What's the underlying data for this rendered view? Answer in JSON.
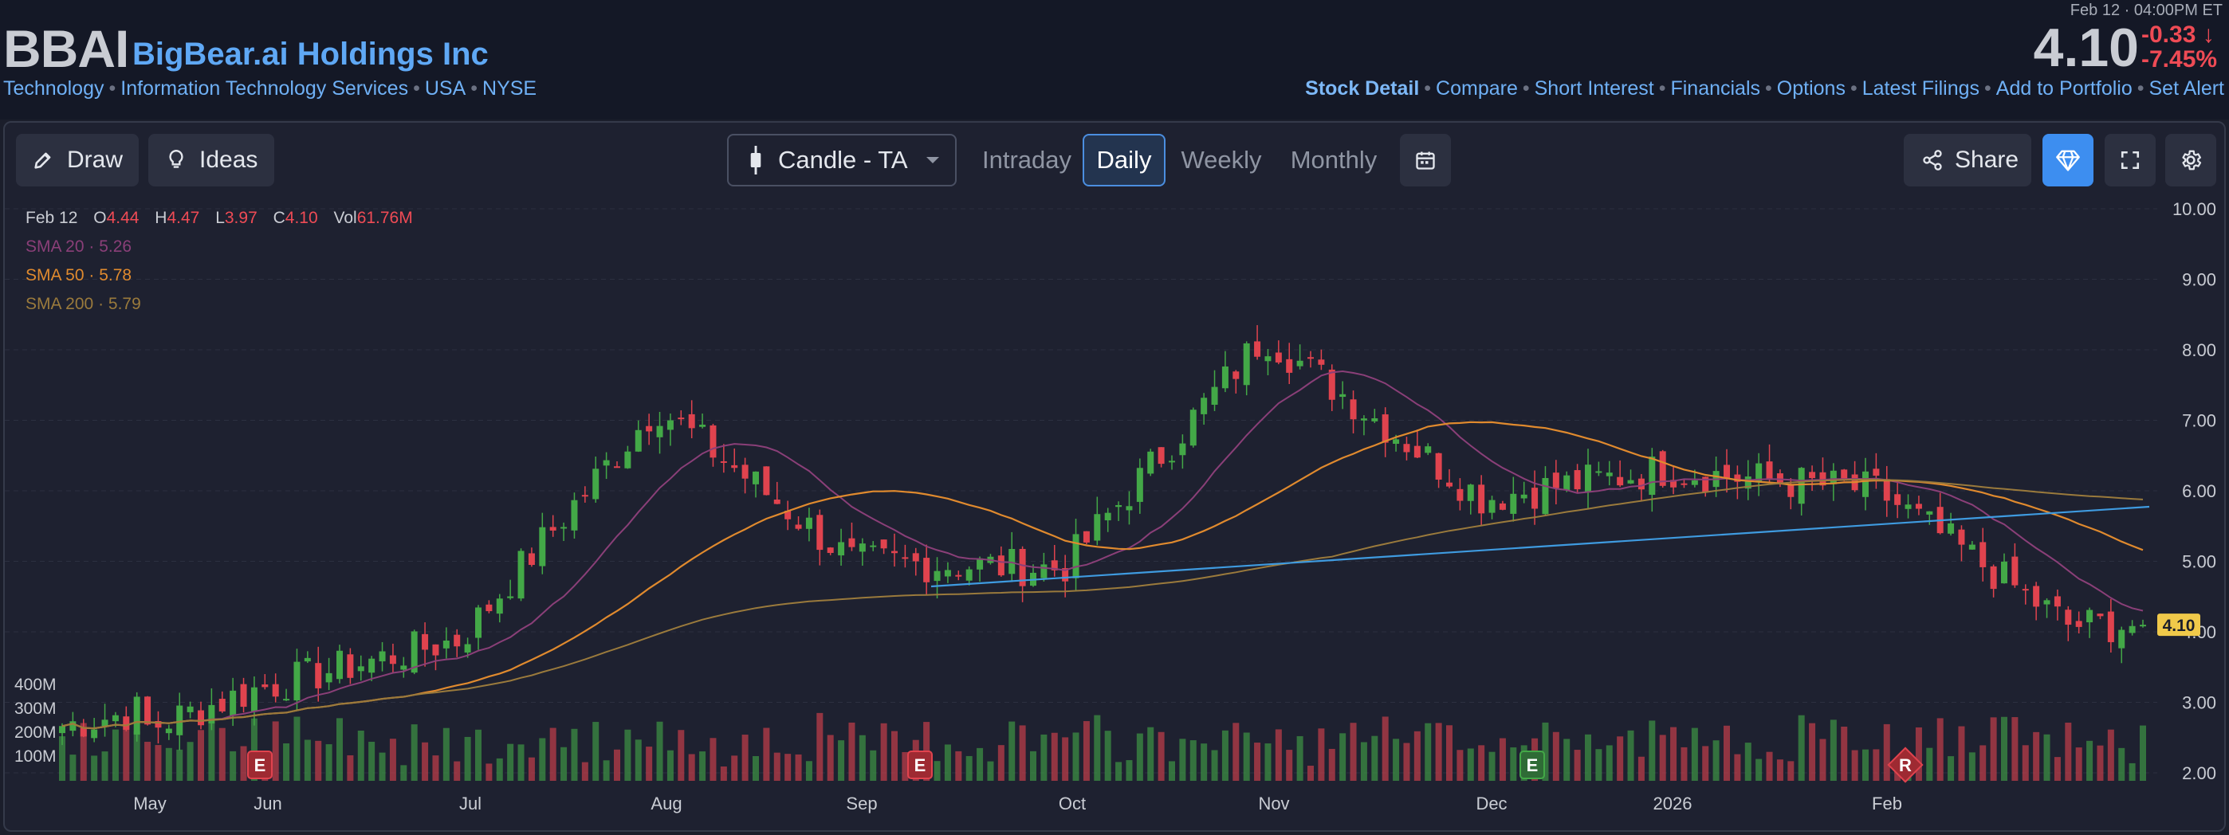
{
  "header": {
    "ticker": "BBAI",
    "company": "BigBear.ai Holdings Inc",
    "meta_links": [
      "Technology",
      "Information Technology Services",
      "USA",
      "NYSE"
    ],
    "timestamp": "Feb 12 · 04:00PM ET",
    "price": "4.10",
    "change_abs": "-0.33",
    "change_pct": "-7.45%",
    "arrow": "↓",
    "nav_links": [
      "Stock Detail",
      "Compare",
      "Short Interest",
      "Financials",
      "Options",
      "Latest Filings",
      "Add to Portfolio",
      "Set Alert"
    ]
  },
  "toolbar": {
    "draw_label": "Draw",
    "ideas_label": "Ideas",
    "chart_type_label": "Candle - TA",
    "periods": [
      "Intraday",
      "Daily",
      "Weekly",
      "Monthly"
    ],
    "active_period": "Daily",
    "share_label": "Share",
    "icons": {
      "draw": "pencil-icon",
      "ideas": "lightbulb-icon",
      "chart_type": "candlestick-icon",
      "dropdown": "caret-down-icon",
      "calendar": "calendar-icon",
      "share": "share-icon",
      "premium": "diamond-icon",
      "fullscreen": "fullscreen-icon",
      "settings": "gear-icon"
    }
  },
  "legend": {
    "date": "Feb 12",
    "o_label": "O",
    "o": "4.44",
    "h_label": "H",
    "h": "4.47",
    "l_label": "L",
    "l": "3.97",
    "c_label": "C",
    "c": "4.10",
    "vol_label": "Vol",
    "vol": "61.76M",
    "sma20": {
      "label": "SMA 20",
      "value": "5.26",
      "color": "#8a3f78"
    },
    "sma50": {
      "label": "SMA 50",
      "value": "5.78",
      "color": "#e08a2e"
    },
    "sma200": {
      "label": "SMA 200",
      "value": "5.79",
      "color": "#9a7a3c"
    }
  },
  "colors": {
    "up": "#43a847",
    "down": "#e0434e",
    "trendline": "#3f9be0",
    "price_tag": "#f0c94a"
  },
  "chart_data": {
    "type": "candlestick",
    "x_tick_labels": [
      "May",
      "Jun",
      "Jul",
      "Aug",
      "Sep",
      "Oct",
      "Nov",
      "Dec",
      "2026",
      "Feb"
    ],
    "y_tick_labels": [
      "10.00",
      "9.00",
      "8.00",
      "7.00",
      "6.00",
      "5.00",
      "4.00",
      "3.00",
      "2.00"
    ],
    "ylim": [
      2,
      10
    ],
    "volume_tick_labels": [
      "400M",
      "300M",
      "200M",
      "100M"
    ],
    "last_price_tag": "4.10",
    "event_markers": [
      {
        "label": "E",
        "month": "May"
      },
      {
        "label": "E",
        "month": "Aug"
      },
      {
        "label": "E",
        "month": "Nov"
      },
      {
        "label": "R",
        "month": "2026"
      }
    ],
    "monthly_close_approx": [
      {
        "x": "Apr",
        "close": 2.6
      },
      {
        "x": "May",
        "close": 3.2
      },
      {
        "x": "Jun",
        "close": 3.9
      },
      {
        "x": "Jul",
        "close": 7.2
      },
      {
        "x": "Aug",
        "close": 5.0
      },
      {
        "x": "Sep",
        "close": 4.9
      },
      {
        "x": "Oct",
        "close": 8.2
      },
      {
        "x": "Nov",
        "close": 5.9
      },
      {
        "x": "Dec",
        "close": 6.3
      },
      {
        "x": "2026",
        "close": 6.0
      },
      {
        "x": "Feb",
        "close": 4.1
      }
    ]
  }
}
